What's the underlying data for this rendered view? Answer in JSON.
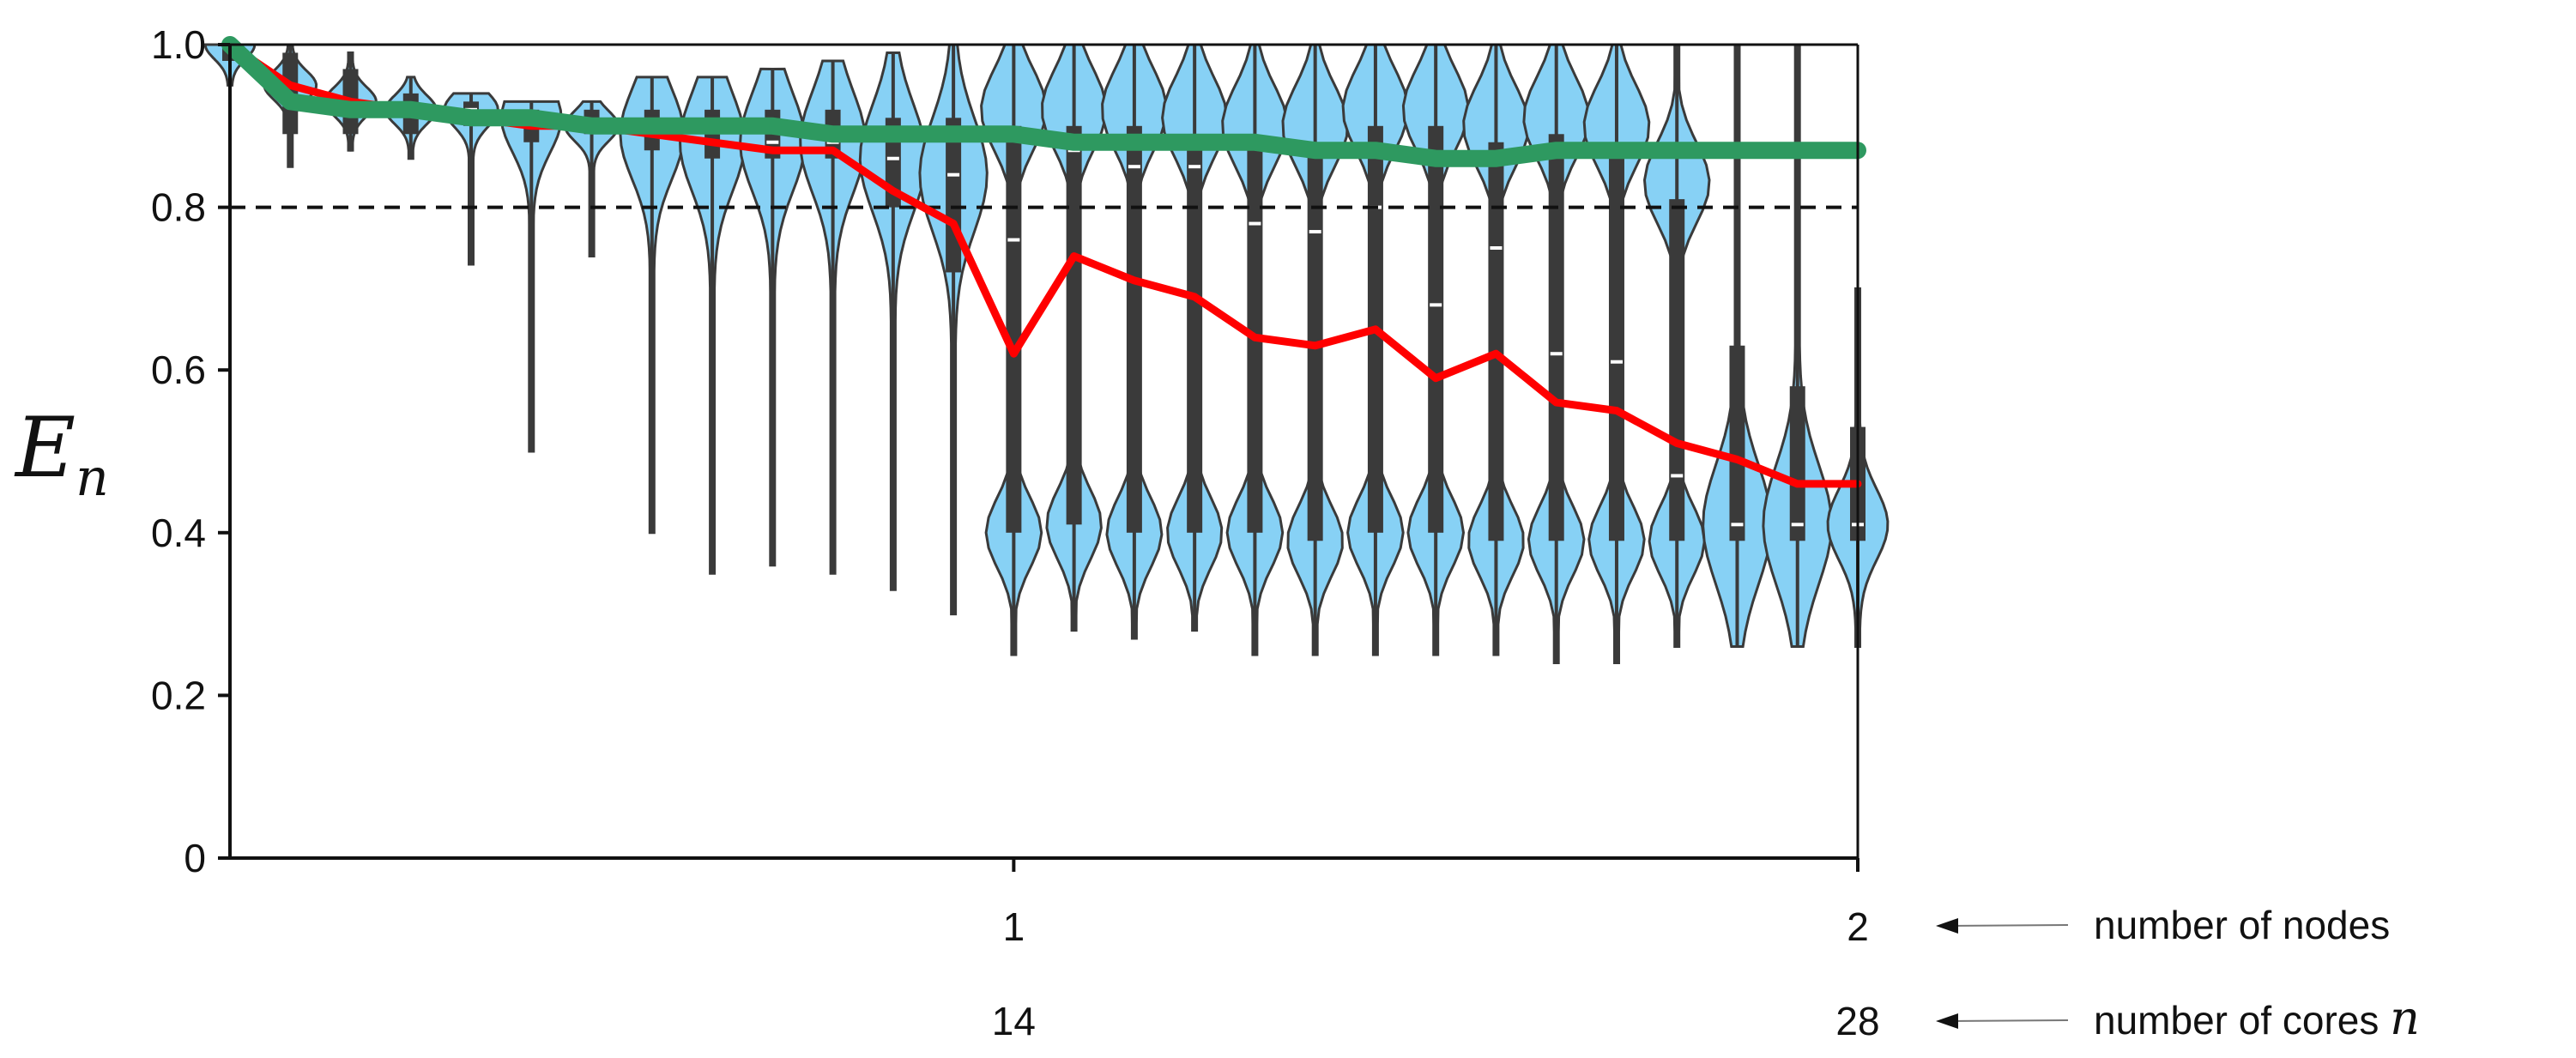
{
  "chart_data": {
    "type": "violin",
    "ylabel": "E",
    "ylabel_subscript": "n",
    "ylim": [
      0,
      1.0
    ],
    "yticks": [
      "1.0",
      "0.8",
      "0.6",
      "0.4",
      "0.2",
      "0"
    ],
    "ytick_values": [
      1.0,
      0.8,
      0.6,
      0.4,
      0.2,
      0
    ],
    "xlim": [
      1,
      28
    ],
    "x_nodes_ticks": [
      {
        "x": 14,
        "label": "1"
      },
      {
        "x": 28,
        "label": "2"
      }
    ],
    "x_cores_ticks": [
      {
        "x": 14,
        "label": "14"
      },
      {
        "x": 28,
        "label": "28"
      }
    ],
    "x_nodes_label": "number of nodes",
    "x_cores_label": "number of cores",
    "x_cores_symbol": "n",
    "reference_line": {
      "y": 0.8,
      "style": "dashed"
    },
    "cores": [
      1,
      2,
      3,
      4,
      5,
      6,
      7,
      8,
      9,
      10,
      11,
      12,
      13,
      14,
      15,
      16,
      17,
      18,
      19,
      20,
      21,
      22,
      23,
      24,
      25,
      26,
      27,
      28
    ],
    "violins": [
      {
        "x": 1,
        "min": 0.95,
        "q1": 0.98,
        "median": 1.0,
        "q3": 1.0,
        "max": 1.0
      },
      {
        "x": 2,
        "min": 0.85,
        "q1": 0.89,
        "median": 0.95,
        "q3": 0.99,
        "max": 1.0
      },
      {
        "x": 3,
        "min": 0.87,
        "q1": 0.89,
        "median": 0.93,
        "q3": 0.97,
        "max": 0.99
      },
      {
        "x": 4,
        "min": 0.86,
        "q1": 0.89,
        "median": 0.92,
        "q3": 0.94,
        "max": 0.96
      },
      {
        "x": 5,
        "min": 0.73,
        "q1": 0.9,
        "median": 0.92,
        "q3": 0.93,
        "max": 0.94
      },
      {
        "x": 6,
        "min": 0.5,
        "q1": 0.88,
        "median": 0.91,
        "q3": 0.92,
        "max": 0.93
      },
      {
        "x": 7,
        "min": 0.74,
        "q1": 0.89,
        "median": 0.9,
        "q3": 0.92,
        "max": 0.93
      },
      {
        "x": 8,
        "min": 0.4,
        "q1": 0.87,
        "median": 0.89,
        "q3": 0.92,
        "max": 0.96
      },
      {
        "x": 9,
        "min": 0.35,
        "q1": 0.86,
        "median": 0.88,
        "q3": 0.92,
        "max": 0.96
      },
      {
        "x": 10,
        "min": 0.36,
        "q1": 0.86,
        "median": 0.88,
        "q3": 0.92,
        "max": 0.97
      },
      {
        "x": 11,
        "min": 0.35,
        "q1": 0.86,
        "median": 0.88,
        "q3": 0.92,
        "max": 0.98
      },
      {
        "x": 12,
        "min": 0.33,
        "q1": 0.8,
        "median": 0.86,
        "q3": 0.91,
        "max": 0.99
      },
      {
        "x": 13,
        "min": 0.3,
        "q1": 0.72,
        "median": 0.84,
        "q3": 0.91,
        "max": 1.0
      },
      {
        "x": 14,
        "min": 0.25,
        "q1": 0.4,
        "median": 0.76,
        "q3": 0.9,
        "max": 1.0
      },
      {
        "x": 15,
        "min": 0.28,
        "q1": 0.41,
        "median": 0.87,
        "q3": 0.9,
        "max": 1.0
      },
      {
        "x": 16,
        "min": 0.27,
        "q1": 0.4,
        "median": 0.85,
        "q3": 0.9,
        "max": 1.0
      },
      {
        "x": 17,
        "min": 0.28,
        "q1": 0.4,
        "median": 0.85,
        "q3": 0.89,
        "max": 1.0
      },
      {
        "x": 18,
        "min": 0.25,
        "q1": 0.4,
        "median": 0.78,
        "q3": 0.88,
        "max": 1.0
      },
      {
        "x": 19,
        "min": 0.25,
        "q1": 0.39,
        "median": 0.77,
        "q3": 0.88,
        "max": 1.0
      },
      {
        "x": 20,
        "min": 0.25,
        "q1": 0.4,
        "median": 0.8,
        "q3": 0.9,
        "max": 1.0
      },
      {
        "x": 21,
        "min": 0.25,
        "q1": 0.4,
        "median": 0.68,
        "q3": 0.9,
        "max": 1.0
      },
      {
        "x": 22,
        "min": 0.25,
        "q1": 0.39,
        "median": 0.75,
        "q3": 0.88,
        "max": 1.0
      },
      {
        "x": 23,
        "min": 0.24,
        "q1": 0.39,
        "median": 0.62,
        "q3": 0.89,
        "max": 1.0
      },
      {
        "x": 24,
        "min": 0.24,
        "q1": 0.39,
        "median": 0.61,
        "q3": 0.88,
        "max": 1.0
      },
      {
        "x": 25,
        "min": 0.26,
        "q1": 0.39,
        "median": 0.47,
        "q3": 0.81,
        "max": 1.0
      },
      {
        "x": 26,
        "min": 0.26,
        "q1": 0.39,
        "median": 0.41,
        "q3": 0.63,
        "max": 1.0
      },
      {
        "x": 27,
        "min": 0.26,
        "q1": 0.39,
        "median": 0.41,
        "q3": 0.58,
        "max": 1.0
      },
      {
        "x": 28,
        "min": 0.26,
        "q1": 0.39,
        "median": 0.41,
        "q3": 0.53,
        "max": 0.7
      }
    ],
    "series": [
      {
        "color": "#ff0000",
        "values": [
          1.0,
          0.95,
          0.93,
          0.92,
          0.91,
          0.9,
          0.9,
          0.89,
          0.88,
          0.87,
          0.87,
          0.82,
          0.78,
          0.62,
          0.74,
          0.71,
          0.69,
          0.64,
          0.63,
          0.65,
          0.59,
          0.62,
          0.56,
          0.55,
          0.51,
          0.49,
          0.46,
          0.46
        ]
      },
      {
        "color": "#2e9960",
        "values": [
          1.0,
          0.93,
          0.92,
          0.92,
          0.91,
          0.91,
          0.9,
          0.9,
          0.9,
          0.9,
          0.89,
          0.89,
          0.89,
          0.89,
          0.88,
          0.88,
          0.88,
          0.88,
          0.87,
          0.87,
          0.86,
          0.86,
          0.87,
          0.87,
          0.87,
          0.87,
          0.87,
          0.87
        ]
      }
    ],
    "colors": {
      "violin_fill": "#87d1f5",
      "violin_edge": "#3a3a3a",
      "box": "#3a3a3a",
      "median": "#ffffff",
      "reference_line": "#111111"
    }
  }
}
